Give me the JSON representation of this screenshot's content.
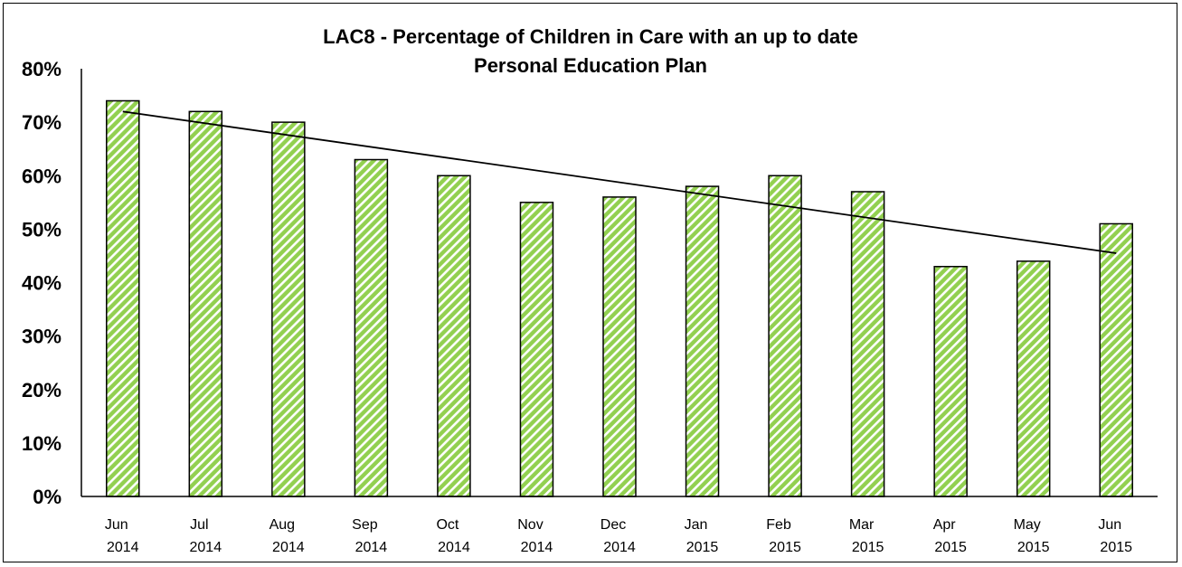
{
  "chart_data": {
    "type": "bar",
    "title_line1": "LAC8 - Percentage of Children in Care with an up to date",
    "title_line2": "Personal Education Plan",
    "categories": [
      [
        "Jun",
        "2014"
      ],
      [
        "Jul",
        "2014"
      ],
      [
        "Aug",
        "2014"
      ],
      [
        "Sep",
        "2014"
      ],
      [
        "Oct",
        "2014"
      ],
      [
        "Nov",
        "2014"
      ],
      [
        "Dec",
        "2014"
      ],
      [
        "Jan",
        "2015"
      ],
      [
        "Feb",
        "2015"
      ],
      [
        "Mar",
        "2015"
      ],
      [
        "Apr",
        "2015"
      ],
      [
        "May",
        "2015"
      ],
      [
        "Jun",
        "2015"
      ]
    ],
    "values": [
      74,
      72,
      70,
      63,
      60,
      55,
      56,
      58,
      60,
      57,
      43,
      44,
      51
    ],
    "trendline": {
      "type": "linear",
      "start": 72,
      "end": 45.5
    },
    "ylim": [
      0,
      80
    ],
    "yticks": [
      "0%",
      "10%",
      "20%",
      "30%",
      "40%",
      "50%",
      "60%",
      "70%",
      "80%"
    ],
    "ytick_values": [
      0,
      10,
      20,
      30,
      40,
      50,
      60,
      70,
      80
    ],
    "xlabel": "",
    "ylabel": "",
    "grid": false,
    "legend": "none",
    "bar_fill_color": "#92d050",
    "bar_stripe_color": "#ffffff",
    "bar_edge_color": "#000000",
    "trendline_color": "#000000"
  }
}
